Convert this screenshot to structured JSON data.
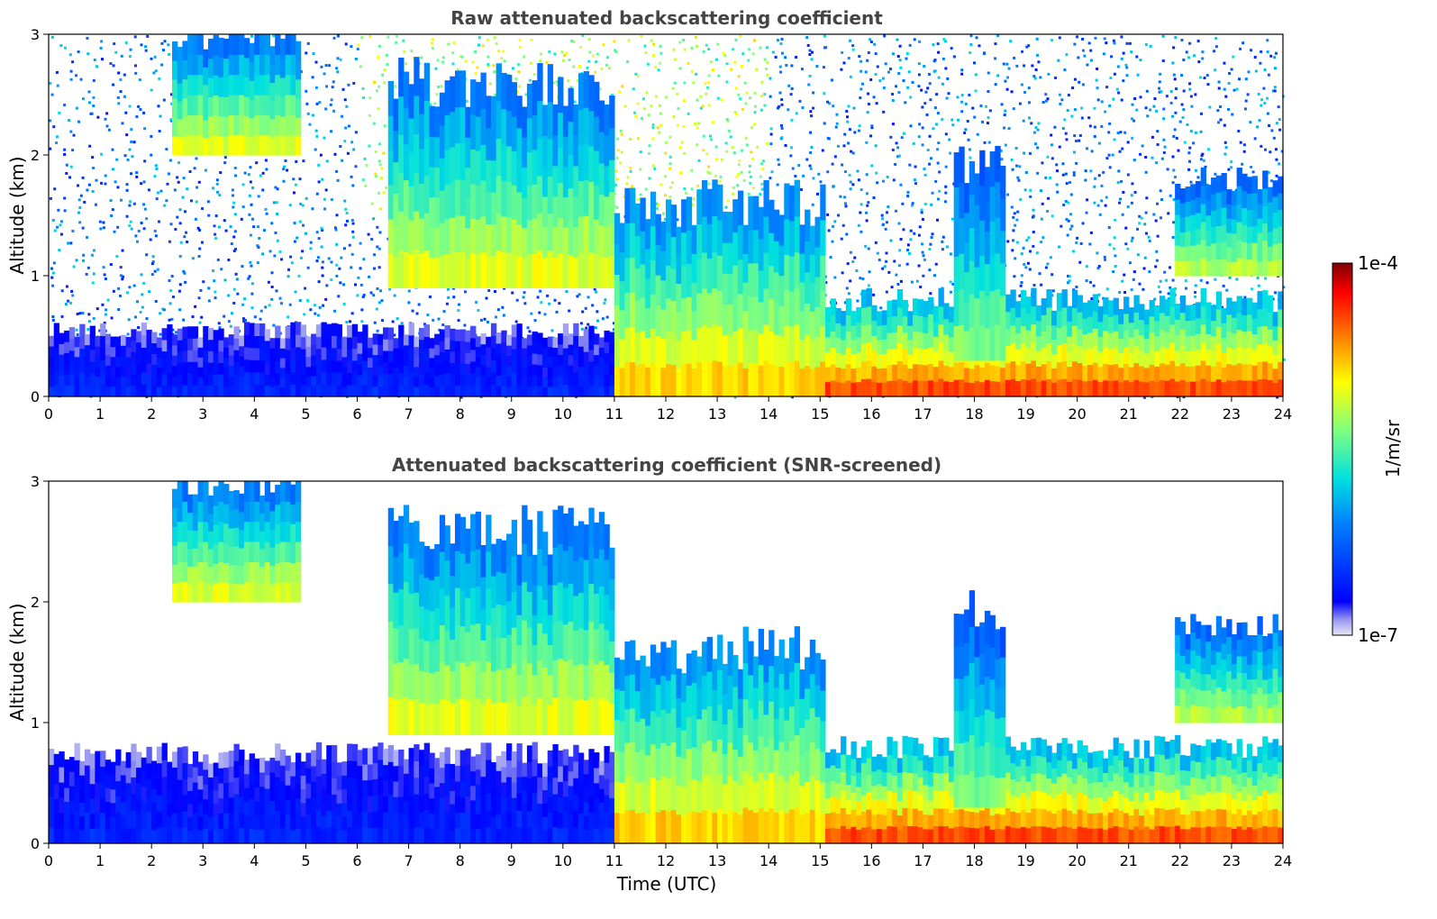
{
  "chart_data": [
    {
      "type": "heatmap",
      "title": "Raw attenuated backscattering coefficient",
      "ylabel": "Altitude (km)",
      "xlabel": "",
      "xlim": [
        0,
        24
      ],
      "ylim": [
        0,
        3
      ],
      "x_ticks": [
        0,
        1,
        2,
        3,
        4,
        5,
        6,
        7,
        8,
        9,
        10,
        11,
        12,
        13,
        14,
        15,
        16,
        17,
        18,
        19,
        20,
        21,
        22,
        23,
        24
      ],
      "y_ticks": [
        0,
        1,
        2,
        3
      ],
      "screened": false,
      "noise_level": 0.3,
      "layers": [
        {
          "t0": 0.0,
          "t1": 11.3,
          "base": 0.0,
          "top": 0.55,
          "level": 0.15
        },
        {
          "t0": 2.4,
          "t1": 4.9,
          "base": 2.0,
          "top": 3.0,
          "level": 0.65
        },
        {
          "t0": 6.6,
          "t1": 11.0,
          "base": 0.9,
          "top": 2.6,
          "level": 0.65
        },
        {
          "t0": 11.0,
          "t1": 15.1,
          "base": 0.0,
          "top": 1.6,
          "level": 0.72
        },
        {
          "t0": 15.1,
          "t1": 24.0,
          "base": 0.0,
          "top": 0.8,
          "level": 0.85
        },
        {
          "t0": 17.6,
          "t1": 18.6,
          "base": 0.3,
          "top": 1.9,
          "level": 0.55
        },
        {
          "t0": 21.9,
          "t1": 24.0,
          "base": 1.0,
          "top": 1.8,
          "level": 0.6
        }
      ]
    },
    {
      "type": "heatmap",
      "title": "Attenuated backscattering coefficient (SNR-screened)",
      "ylabel": "Altitude (km)",
      "xlabel": "Time (UTC)",
      "xlim": [
        0,
        24
      ],
      "ylim": [
        0,
        3
      ],
      "x_ticks": [
        0,
        1,
        2,
        3,
        4,
        5,
        6,
        7,
        8,
        9,
        10,
        11,
        12,
        13,
        14,
        15,
        16,
        17,
        18,
        19,
        20,
        21,
        22,
        23,
        24
      ],
      "y_ticks": [
        0,
        1,
        2,
        3
      ],
      "screened": true,
      "noise_level": 0.0,
      "layers": [
        {
          "t0": 0.0,
          "t1": 11.3,
          "base": 0.0,
          "top": 0.75,
          "level": 0.15
        },
        {
          "t0": 2.4,
          "t1": 4.9,
          "base": 2.0,
          "top": 3.0,
          "level": 0.65
        },
        {
          "t0": 6.6,
          "t1": 11.0,
          "base": 0.9,
          "top": 2.6,
          "level": 0.65
        },
        {
          "t0": 11.0,
          "t1": 15.1,
          "base": 0.0,
          "top": 1.6,
          "level": 0.72
        },
        {
          "t0": 15.1,
          "t1": 24.0,
          "base": 0.0,
          "top": 0.8,
          "level": 0.85
        },
        {
          "t0": 17.6,
          "t1": 18.6,
          "base": 0.3,
          "top": 1.9,
          "level": 0.55
        },
        {
          "t0": 21.9,
          "t1": 24.0,
          "base": 1.0,
          "top": 1.8,
          "level": 0.6
        }
      ]
    }
  ],
  "colorbar": {
    "label": "1/m/sr",
    "max_label": "1e-4",
    "min_label": "1e-7",
    "colormap": "jet"
  }
}
